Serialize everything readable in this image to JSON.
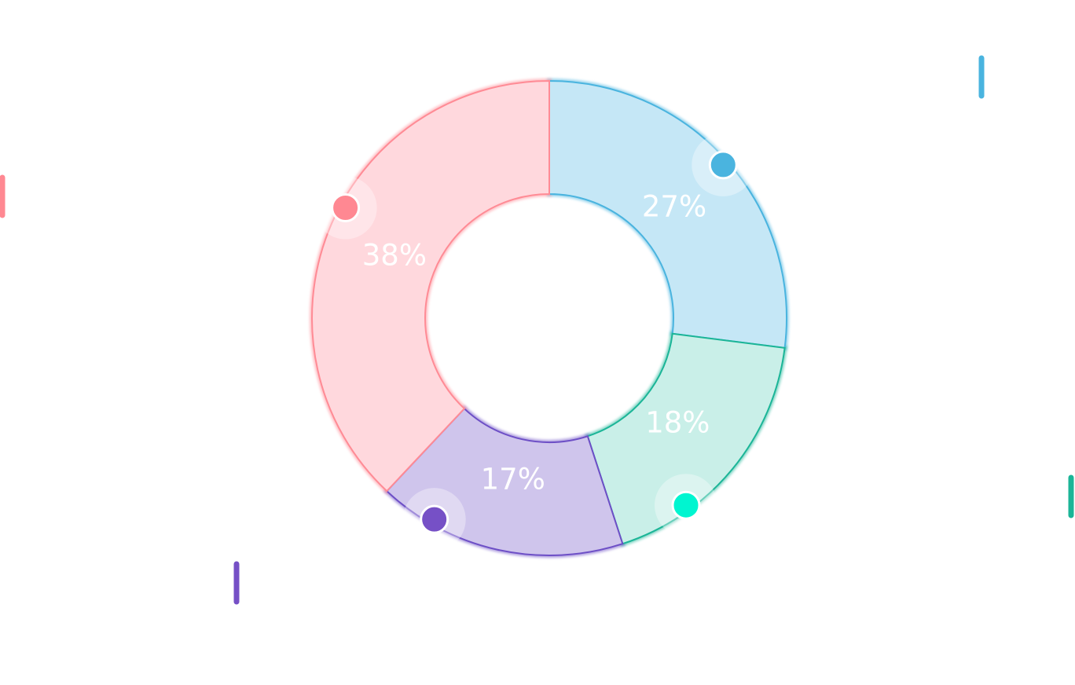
{
  "chart_data": {
    "type": "pie",
    "variant": "donut",
    "start_angle_deg": 0,
    "direction": "clockwise",
    "slices": [
      {
        "label": "27%",
        "value": 27,
        "fill": "#c5e7f6",
        "stroke": "#4ab4df",
        "marker": "#4ab4df"
      },
      {
        "label": "18%",
        "value": 18,
        "fill": "#c9efe8",
        "stroke": "#1bb597",
        "marker": "#00f5d0"
      },
      {
        "label": "17%",
        "value": 17,
        "fill": "#cfc5ec",
        "stroke": "#6d4fc6",
        "marker": "#7650c6"
      },
      {
        "label": "38%",
        "value": 38,
        "fill": "#ffd8dd",
        "stroke": "#ff8b95",
        "marker": "#ff8892"
      }
    ],
    "legend_ticks": [
      {
        "color": "#4ab4df"
      },
      {
        "color": "#ff8892"
      },
      {
        "color": "#1bb597"
      },
      {
        "color": "#7650c6"
      }
    ],
    "title": "",
    "xlabel": "",
    "ylabel": ""
  }
}
